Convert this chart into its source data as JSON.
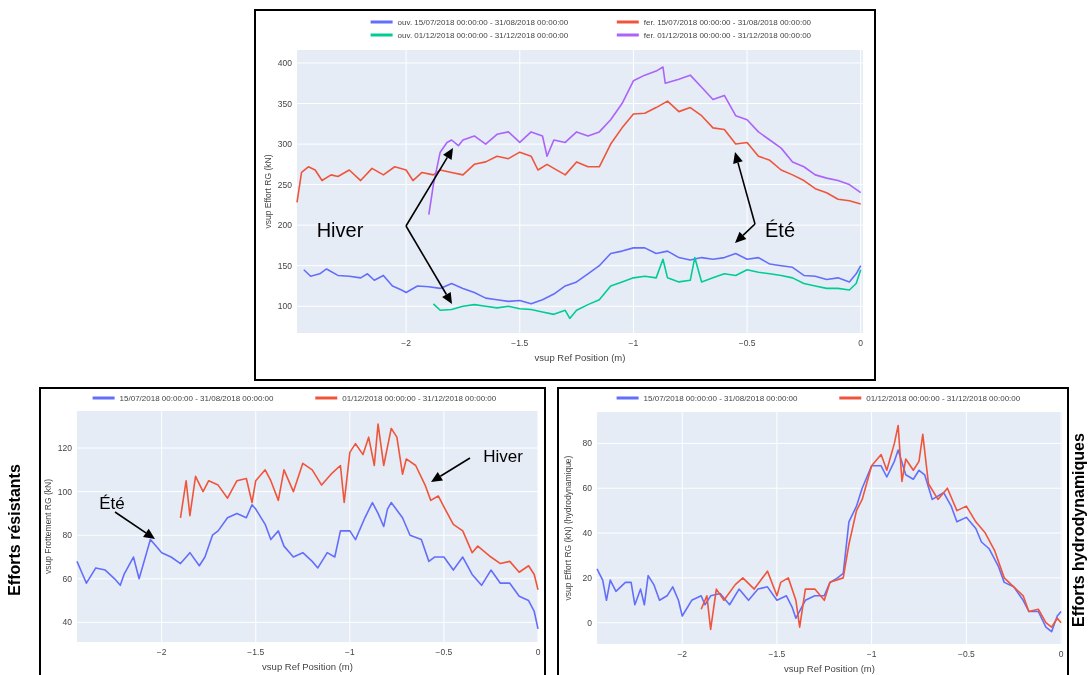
{
  "chart_data": [
    {
      "type": "line",
      "xlabel": "vsup Ref Position (m)",
      "ylabel": "vsup Effort RG (kN)",
      "xlim": [
        -2.48,
        0.01
      ],
      "ylim": [
        67,
        416
      ],
      "xticks": [
        {
          "value": -2,
          "label": "−2"
        },
        {
          "value": -1.5,
          "label": "−1.5"
        },
        {
          "value": -1,
          "label": "−1"
        },
        {
          "value": -0.5,
          "label": "−0.5"
        },
        {
          "value": 0,
          "label": "0"
        }
      ],
      "yticks": [
        100,
        150,
        200,
        250,
        300,
        350,
        400
      ],
      "grid": true,
      "legend": "top right",
      "marker": "none",
      "line_style": "solid",
      "annotations": [
        "Hiver",
        "Été"
      ],
      "series": [
        {
          "name": "ouv. 15/07/2018 00:00:00 - 31/08/2018 00:00:00",
          "color": "#636efa",
          "x": [
            -2.45,
            -2.42,
            -2.38,
            -2.35,
            -2.3,
            -2.25,
            -2.2,
            -2.17,
            -2.14,
            -2.1,
            -2.06,
            -2.02,
            -2.0,
            -1.95,
            -1.9,
            -1.85,
            -1.8,
            -1.75,
            -1.7,
            -1.65,
            -1.6,
            -1.55,
            -1.5,
            -1.45,
            -1.4,
            -1.35,
            -1.3,
            -1.25,
            -1.2,
            -1.15,
            -1.1,
            -1.05,
            -1.0,
            -0.95,
            -0.9,
            -0.85,
            -0.8,
            -0.75,
            -0.7,
            -0.65,
            -0.6,
            -0.55,
            -0.5,
            -0.45,
            -0.4,
            -0.35,
            -0.3,
            -0.25,
            -0.2,
            -0.15,
            -0.1,
            -0.05,
            -0.02,
            0
          ],
          "values": [
            145,
            137,
            140,
            146,
            138,
            137,
            135,
            140,
            132,
            138,
            125,
            120,
            117,
            125,
            124,
            122,
            128,
            122,
            117,
            110,
            108,
            106,
            107,
            103,
            108,
            115,
            125,
            130,
            140,
            150,
            165,
            168,
            172,
            172,
            165,
            168,
            160,
            157,
            160,
            158,
            160,
            165,
            158,
            160,
            152,
            150,
            148,
            138,
            137,
            133,
            135,
            130,
            140,
            150
          ]
        },
        {
          "name": "fer. 15/07/2018 00:00:00 - 31/08/2018 00:00:00",
          "color": "#ef553b",
          "x": [
            -2.48,
            -2.46,
            -2.43,
            -2.4,
            -2.37,
            -2.33,
            -2.3,
            -2.25,
            -2.2,
            -2.15,
            -2.1,
            -2.05,
            -2.0,
            -1.97,
            -1.93,
            -1.88,
            -1.85,
            -1.8,
            -1.75,
            -1.7,
            -1.65,
            -1.6,
            -1.55,
            -1.5,
            -1.45,
            -1.42,
            -1.38,
            -1.35,
            -1.3,
            -1.25,
            -1.2,
            -1.15,
            -1.1,
            -1.05,
            -1.0,
            -0.95,
            -0.9,
            -0.85,
            -0.8,
            -0.75,
            -0.7,
            -0.65,
            -0.6,
            -0.55,
            -0.5,
            -0.45,
            -0.4,
            -0.35,
            -0.3,
            -0.25,
            -0.2,
            -0.15,
            -0.1,
            -0.05,
            0
          ],
          "values": [
            228,
            265,
            272,
            268,
            255,
            262,
            260,
            268,
            255,
            270,
            262,
            272,
            268,
            255,
            265,
            262,
            268,
            265,
            262,
            275,
            278,
            285,
            282,
            290,
            285,
            268,
            275,
            270,
            262,
            278,
            272,
            272,
            300,
            320,
            337,
            338,
            345,
            353,
            340,
            345,
            335,
            320,
            318,
            300,
            302,
            285,
            280,
            268,
            262,
            255,
            245,
            240,
            232,
            230,
            226
          ]
        },
        {
          "name": "ouv. 01/12/2018 00:00:00 - 31/12/2018 00:00:00",
          "color": "#00cc96",
          "x": [
            -1.88,
            -1.85,
            -1.8,
            -1.75,
            -1.7,
            -1.65,
            -1.6,
            -1.55,
            -1.5,
            -1.45,
            -1.4,
            -1.35,
            -1.3,
            -1.28,
            -1.25,
            -1.2,
            -1.15,
            -1.1,
            -1.05,
            -1.0,
            -0.95,
            -0.9,
            -0.87,
            -0.85,
            -0.8,
            -0.75,
            -0.73,
            -0.7,
            -0.65,
            -0.6,
            -0.55,
            -0.5,
            -0.45,
            -0.4,
            -0.35,
            -0.3,
            -0.25,
            -0.2,
            -0.15,
            -0.1,
            -0.05,
            -0.02,
            0
          ],
          "values": [
            103,
            95,
            96,
            100,
            102,
            100,
            98,
            100,
            97,
            96,
            93,
            90,
            95,
            85,
            95,
            102,
            108,
            125,
            130,
            135,
            137,
            135,
            158,
            135,
            130,
            132,
            160,
            130,
            135,
            140,
            138,
            145,
            142,
            140,
            138,
            135,
            128,
            125,
            122,
            122,
            120,
            128,
            145
          ]
        },
        {
          "name": "fer. 01/12/2018 00:00:00 - 31/12/2018 00:00:00",
          "color": "#ab63fa",
          "x": [
            -1.9,
            -1.88,
            -1.85,
            -1.82,
            -1.8,
            -1.77,
            -1.75,
            -1.7,
            -1.65,
            -1.6,
            -1.55,
            -1.5,
            -1.45,
            -1.4,
            -1.38,
            -1.35,
            -1.3,
            -1.25,
            -1.2,
            -1.15,
            -1.1,
            -1.05,
            -1.0,
            -0.95,
            -0.9,
            -0.87,
            -0.86,
            -0.8,
            -0.75,
            -0.7,
            -0.65,
            -0.6,
            -0.55,
            -0.5,
            -0.45,
            -0.4,
            -0.35,
            -0.3,
            -0.25,
            -0.2,
            -0.15,
            -0.1,
            -0.05,
            0
          ],
          "values": [
            213,
            250,
            290,
            302,
            305,
            298,
            305,
            310,
            300,
            312,
            315,
            302,
            315,
            310,
            285,
            305,
            302,
            315,
            310,
            315,
            330,
            350,
            378,
            385,
            390,
            395,
            375,
            380,
            385,
            370,
            355,
            360,
            335,
            330,
            315,
            305,
            295,
            278,
            272,
            262,
            258,
            255,
            250,
            240
          ]
        }
      ]
    },
    {
      "type": "line",
      "xlabel": "vsup Ref Position (m)",
      "ylabel": "vsup Frottement RG (kN)",
      "xlim": [
        -2.45,
        0
      ],
      "ylim": [
        31,
        137
      ],
      "xticks": [
        {
          "value": -2,
          "label": "−2"
        },
        {
          "value": -1.5,
          "label": "−1.5"
        },
        {
          "value": -1,
          "label": "−1"
        },
        {
          "value": -0.5,
          "label": "−0.5"
        },
        {
          "value": 0,
          "label": "0"
        }
      ],
      "yticks": [
        40,
        60,
        80,
        100,
        120
      ],
      "grid": true,
      "legend": "top right",
      "marker": "none",
      "line_style": "solid",
      "annotations": [
        "Été",
        "Hiver",
        "Efforts résistants"
      ],
      "series": [
        {
          "name": "15/07/2018 00:00:00 - 31/08/2018 00:00:00",
          "color": "#636efa",
          "x": [
            -2.45,
            -2.42,
            -2.4,
            -2.35,
            -2.3,
            -2.25,
            -2.22,
            -2.2,
            -2.15,
            -2.12,
            -2.08,
            -2.06,
            -2.02,
            -2.0,
            -1.95,
            -1.9,
            -1.85,
            -1.8,
            -1.77,
            -1.73,
            -1.7,
            -1.65,
            -1.6,
            -1.55,
            -1.52,
            -1.5,
            -1.45,
            -1.42,
            -1.38,
            -1.35,
            -1.3,
            -1.25,
            -1.2,
            -1.17,
            -1.12,
            -1.08,
            -1.05,
            -1.0,
            -0.97,
            -0.92,
            -0.88,
            -0.85,
            -0.82,
            -0.8,
            -0.78,
            -0.72,
            -0.68,
            -0.62,
            -0.58,
            -0.55,
            -0.5,
            -0.45,
            -0.4,
            -0.35,
            -0.3,
            -0.25,
            -0.2,
            -0.15,
            -0.1,
            -0.05,
            -0.02,
            0
          ],
          "values": [
            68,
            62,
            58,
            65,
            64,
            60,
            57,
            62,
            70,
            60,
            72,
            78,
            74,
            72,
            70,
            67,
            72,
            66,
            70,
            80,
            82,
            88,
            90,
            88,
            94,
            92,
            85,
            78,
            82,
            75,
            70,
            72,
            68,
            65,
            72,
            70,
            82,
            82,
            78,
            88,
            95,
            90,
            84,
            92,
            95,
            88,
            80,
            78,
            68,
            70,
            70,
            64,
            70,
            62,
            57,
            64,
            58,
            58,
            52,
            50,
            45,
            37
          ]
        },
        {
          "name": "01/12/2018 00:00:00 - 31/12/2018 00:00:00",
          "color": "#ef553b",
          "x": [
            -1.9,
            -1.87,
            -1.85,
            -1.82,
            -1.78,
            -1.75,
            -1.7,
            -1.65,
            -1.6,
            -1.55,
            -1.52,
            -1.5,
            -1.45,
            -1.42,
            -1.38,
            -1.35,
            -1.3,
            -1.25,
            -1.2,
            -1.15,
            -1.1,
            -1.05,
            -1.03,
            -1.0,
            -0.97,
            -0.93,
            -0.9,
            -0.87,
            -0.85,
            -0.82,
            -0.78,
            -0.75,
            -0.72,
            -0.7,
            -0.65,
            -0.6,
            -0.57,
            -0.53,
            -0.5,
            -0.45,
            -0.4,
            -0.35,
            -0.32,
            -0.25,
            -0.2,
            -0.15,
            -0.1,
            -0.05,
            -0.02,
            0
          ],
          "values": [
            88,
            105,
            89,
            107,
            100,
            105,
            103,
            97,
            105,
            106,
            95,
            105,
            110,
            105,
            96,
            110,
            100,
            113,
            110,
            103,
            108,
            112,
            95,
            118,
            122,
            117,
            125,
            112,
            131,
            112,
            129,
            125,
            108,
            115,
            112,
            103,
            96,
            98,
            93,
            85,
            82,
            72,
            75,
            70,
            67,
            68,
            63,
            66,
            62,
            55
          ]
        }
      ]
    },
    {
      "type": "line",
      "xlabel": "vsup Ref Position (m)",
      "ylabel": "vsup Effort RG (kN) (hydrodynamique)",
      "xlim": [
        -2.45,
        0.005
      ],
      "ylim": [
        -9.5,
        94
      ],
      "xticks": [
        {
          "value": -2,
          "label": "−2"
        },
        {
          "value": -1.5,
          "label": "−1.5"
        },
        {
          "value": -1,
          "label": "−1"
        },
        {
          "value": -0.5,
          "label": "−0.5"
        },
        {
          "value": 0,
          "label": "0"
        }
      ],
      "yticks": [
        0,
        20,
        40,
        60,
        80
      ],
      "grid": true,
      "legend": "top right",
      "marker": "none",
      "line_style": "solid",
      "annotations": [
        "Efforts hydrodynamiques"
      ],
      "series": [
        {
          "name": "15/07/2018 00:00:00 - 31/08/2018 00:00:00",
          "color": "#636efa",
          "x": [
            -2.45,
            -2.42,
            -2.4,
            -2.38,
            -2.35,
            -2.3,
            -2.27,
            -2.25,
            -2.22,
            -2.2,
            -2.18,
            -2.15,
            -2.12,
            -2.08,
            -2.05,
            -2.02,
            -2.0,
            -1.95,
            -1.9,
            -1.88,
            -1.85,
            -1.8,
            -1.75,
            -1.7,
            -1.65,
            -1.6,
            -1.55,
            -1.5,
            -1.45,
            -1.42,
            -1.4,
            -1.35,
            -1.3,
            -1.25,
            -1.22,
            -1.18,
            -1.15,
            -1.12,
            -1.08,
            -1.05,
            -1.0,
            -0.95,
            -0.92,
            -0.88,
            -0.86,
            -0.82,
            -0.78,
            -0.75,
            -0.72,
            -0.68,
            -0.62,
            -0.58,
            -0.55,
            -0.5,
            -0.45,
            -0.42,
            -0.38,
            -0.33,
            -0.3,
            -0.25,
            -0.2,
            -0.17,
            -0.12,
            -0.08,
            -0.05,
            -0.02,
            0
          ],
          "values": [
            24,
            19,
            10,
            19,
            14,
            18,
            18,
            8,
            15,
            8,
            21,
            17,
            10,
            12,
            16,
            10,
            3,
            10,
            12,
            8,
            12,
            13,
            8,
            15,
            10,
            15,
            16,
            10,
            12,
            7,
            2,
            10,
            12,
            12,
            18,
            20,
            22,
            45,
            52,
            60,
            70,
            70,
            65,
            72,
            77,
            66,
            64,
            68,
            66,
            55,
            58,
            52,
            45,
            47,
            42,
            36,
            33,
            25,
            18,
            16,
            10,
            5,
            5,
            -2,
            -4,
            3,
            5
          ]
        },
        {
          "name": "01/12/2018 00:00:00 - 31/12/2018 00:00:00",
          "color": "#ef553b",
          "x": [
            -1.9,
            -1.87,
            -1.85,
            -1.82,
            -1.78,
            -1.72,
            -1.68,
            -1.62,
            -1.55,
            -1.5,
            -1.48,
            -1.44,
            -1.4,
            -1.38,
            -1.35,
            -1.3,
            -1.25,
            -1.22,
            -1.15,
            -1.12,
            -1.08,
            -1.05,
            -1.0,
            -0.95,
            -0.92,
            -0.88,
            -0.86,
            -0.84,
            -0.82,
            -0.78,
            -0.75,
            -0.73,
            -0.7,
            -0.65,
            -0.6,
            -0.55,
            -0.5,
            -0.45,
            -0.4,
            -0.35,
            -0.3,
            -0.25,
            -0.2,
            -0.17,
            -0.12,
            -0.08,
            -0.05,
            -0.02,
            0
          ],
          "values": [
            6,
            12,
            -3,
            15,
            10,
            17,
            20,
            15,
            23,
            12,
            18,
            20,
            10,
            -2,
            15,
            15,
            10,
            18,
            20,
            35,
            50,
            55,
            70,
            75,
            68,
            80,
            88,
            63,
            73,
            68,
            72,
            84,
            62,
            55,
            60,
            50,
            52,
            45,
            40,
            32,
            20,
            16,
            12,
            5,
            6,
            0,
            -2,
            2,
            0
          ]
        }
      ]
    }
  ]
}
